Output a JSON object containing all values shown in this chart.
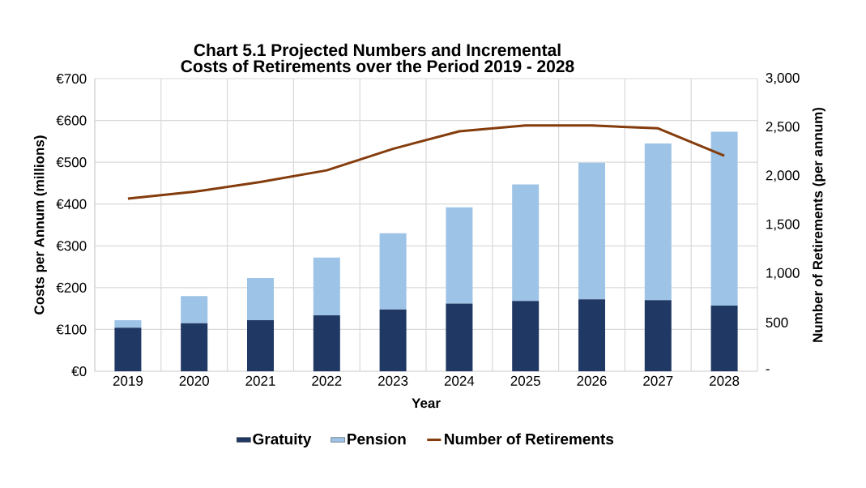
{
  "chart_data": {
    "type": "bar",
    "title": "Chart 5.1 Projected Numbers and Incremental Costs of Retirements over the Period 2019 - 2028",
    "xlabel": "Year",
    "ylabel": "Costs per Annum (millions)",
    "y2label": "Number of Retirements (per annum)",
    "categories": [
      "2019",
      "2020",
      "2021",
      "2022",
      "2023",
      "2024",
      "2025",
      "2026",
      "2027",
      "2028"
    ],
    "stacked": true,
    "series": [
      {
        "name": "Gratuity",
        "color": "#203864",
        "values": [
          104,
          115,
          122,
          134,
          148,
          162,
          168,
          172,
          170,
          157
        ]
      },
      {
        "name": "Pension",
        "color": "#9dc3e6",
        "values": [
          18,
          65,
          101,
          138,
          182,
          230,
          279,
          327,
          375,
          416
        ]
      },
      {
        "name": "Number of Retirements",
        "type": "line",
        "axis": "y2",
        "color": "#843c0c",
        "values": [
          1770,
          1840,
          1940,
          2060,
          2280,
          2460,
          2520,
          2520,
          2490,
          2210
        ]
      }
    ],
    "ylim": [
      0,
      700
    ],
    "yticks": [
      {
        "value": 0,
        "label": "€0"
      },
      {
        "value": 100,
        "label": "€100"
      },
      {
        "value": 200,
        "label": "€200"
      },
      {
        "value": 300,
        "label": "€300"
      },
      {
        "value": 400,
        "label": "€400"
      },
      {
        "value": 500,
        "label": "€500"
      },
      {
        "value": 600,
        "label": "€600"
      },
      {
        "value": 700,
        "label": "€700"
      }
    ],
    "y2lim": [
      0,
      3000
    ],
    "y2ticks": [
      {
        "value": 0,
        "label": "-"
      },
      500,
      {
        "value": 1000,
        "label": "1,000"
      },
      {
        "value": 1500,
        "label": "1,500"
      },
      {
        "value": 2000,
        "label": "2,000"
      },
      {
        "value": 2500,
        "label": "2,500"
      },
      {
        "value": 3000,
        "label": "3,000"
      }
    ],
    "grid": true,
    "legend": "bottom",
    "marker": "none",
    "line_style": "solid"
  }
}
